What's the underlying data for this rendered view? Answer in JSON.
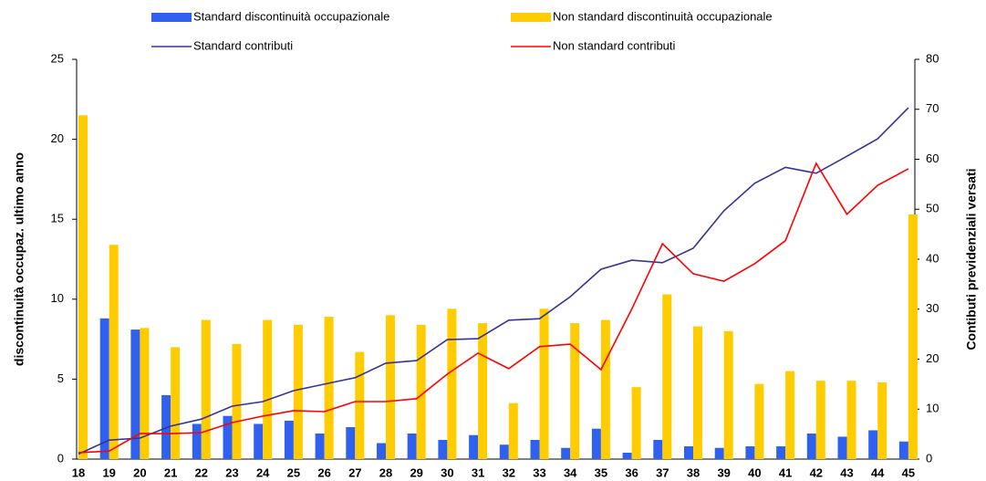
{
  "chart_data": {
    "type": "bar_line",
    "ylabel": "discontinuità occupaz. ultimo anno",
    "y2label": "Contibuti previdenziali versati",
    "categories": [
      "18",
      "19",
      "20",
      "21",
      "22",
      "23",
      "24",
      "25",
      "26",
      "27",
      "28",
      "29",
      "30",
      "31",
      "32",
      "33",
      "34",
      "35",
      "36",
      "37",
      "38",
      "39",
      "40",
      "41",
      "42",
      "43",
      "44",
      "45"
    ],
    "ylim": [
      0,
      25
    ],
    "yticks": [
      0,
      5,
      10,
      15,
      20,
      25
    ],
    "y2lim": [
      0,
      80
    ],
    "y2ticks": [
      0,
      10,
      20,
      30,
      40,
      50,
      60,
      70,
      80
    ],
    "series": [
      {
        "name": "Standard discontinuità occupazionale",
        "kind": "bar",
        "color": "#3060f0",
        "values": [
          0,
          8.8,
          8.1,
          4.0,
          2.2,
          2.7,
          2.2,
          2.4,
          1.6,
          2.0,
          1.0,
          1.6,
          1.2,
          1.5,
          0.9,
          1.2,
          0.7,
          1.9,
          0.4,
          1.2,
          0.8,
          0.7,
          0.8,
          0.8,
          1.6,
          1.4,
          1.8,
          1.1
        ]
      },
      {
        "name": "Non standard discontinuità occupazionale",
        "kind": "bar",
        "color": "#ffcc00",
        "values": [
          21.5,
          13.4,
          8.2,
          7.0,
          8.7,
          7.2,
          8.7,
          8.4,
          8.9,
          6.7,
          9.0,
          8.4,
          9.4,
          8.5,
          3.5,
          9.4,
          8.5,
          8.7,
          4.5,
          10.3,
          8.3,
          8.0,
          4.7,
          5.5,
          4.9,
          4.9,
          4.8,
          15.3
        ]
      },
      {
        "name": "Standard contributi",
        "kind": "line",
        "axis": "y2",
        "color": "#333399",
        "values": [
          1,
          3.8,
          4.2,
          6.6,
          8,
          10.6,
          11.5,
          13.7,
          15,
          16.3,
          19.2,
          19.7,
          23.9,
          24.1,
          27.8,
          28.1,
          32.5,
          38,
          39.8,
          39.3,
          42.2,
          49.7,
          55.2,
          58.4,
          57.2,
          60.6,
          64.1,
          70.3
        ]
      },
      {
        "name": "Non standard contributi",
        "kind": "line",
        "axis": "y2",
        "color": "#ff0000",
        "values": [
          1.3,
          1.6,
          5.1,
          5.1,
          5.3,
          7.3,
          8.6,
          9.7,
          9.5,
          11.5,
          11.5,
          12.1,
          17,
          21.2,
          18.1,
          22.5,
          23,
          17.9,
          30,
          43.1,
          37.1,
          35.6,
          39.1,
          43.7,
          59.2,
          49,
          54.8,
          58.1
        ]
      }
    ]
  }
}
